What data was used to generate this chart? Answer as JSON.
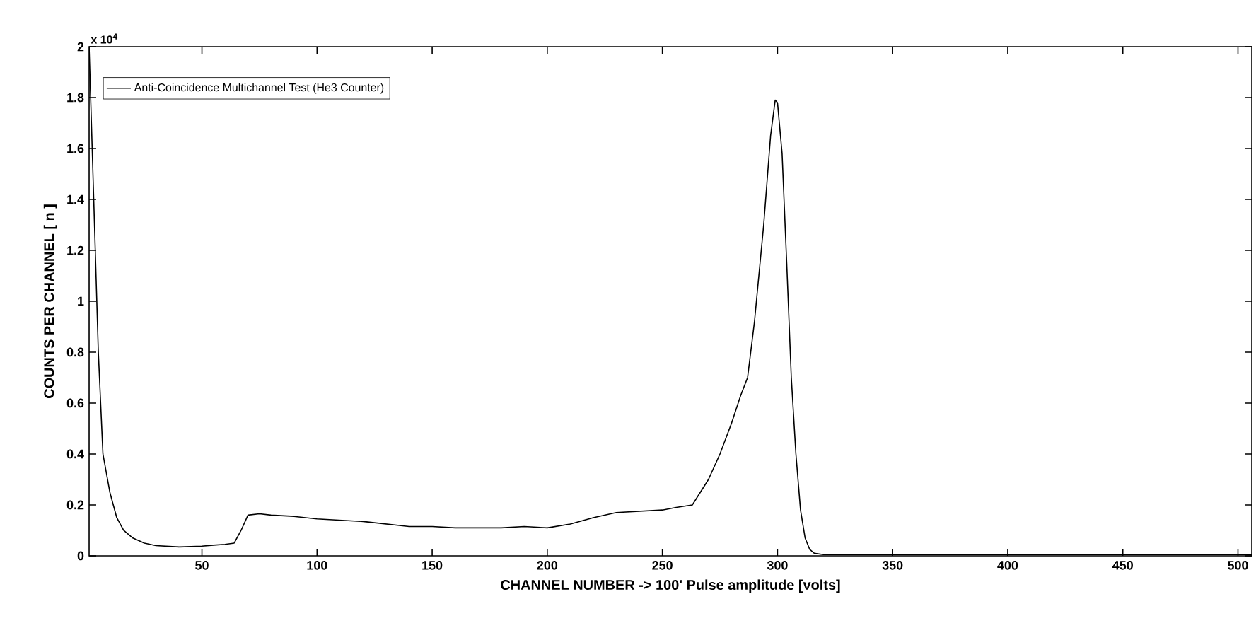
{
  "chart_data": {
    "type": "line",
    "xlabel": "CHANNEL NUMBER -> 100' Pulse amplitude [volts]",
    "ylabel": "COUNTS PER CHANNEL [ n ]",
    "annotations": [
      "x 10$^{4}$"
    ],
    "xlim": [
      1,
      506
    ],
    "ylim": [
      0,
      2
    ],
    "xticks": [
      50,
      100,
      150,
      200,
      250,
      300,
      350,
      400,
      450,
      500
    ],
    "yticks": [
      0,
      0.2,
      0.4,
      0.6,
      0.8,
      1,
      1.2,
      1.4,
      1.6,
      1.8,
      2
    ],
    "grid": false,
    "legend": "top left",
    "marker": "none",
    "line_style": "solid",
    "series": [
      {
        "name": "Anti-Coincidence Multichannel Test (He3 Counter)",
        "color": "#000000",
        "x": [
          1,
          3,
          5,
          7,
          10,
          13,
          16,
          20,
          25,
          30,
          40,
          50,
          55,
          60,
          64,
          67,
          70,
          75,
          80,
          90,
          100,
          110,
          120,
          130,
          140,
          150,
          160,
          170,
          180,
          190,
          200,
          210,
          220,
          230,
          240,
          250,
          256,
          263,
          270,
          275,
          280,
          284,
          287,
          290,
          294,
          297,
          299,
          300,
          302,
          304,
          306,
          308,
          310,
          312,
          314,
          316,
          320,
          350,
          400,
          450,
          500,
          506
        ],
        "values": [
          2,
          1.4,
          0.8,
          0.4,
          0.25,
          0.15,
          0.1,
          0.07,
          0.05,
          0.04,
          0.035,
          0.038,
          0.042,
          0.045,
          0.05,
          0.1,
          0.16,
          0.165,
          0.16,
          0.155,
          0.145,
          0.14,
          0.135,
          0.125,
          0.115,
          0.115,
          0.11,
          0.11,
          0.11,
          0.115,
          0.11,
          0.125,
          0.15,
          0.17,
          0.175,
          0.18,
          0.19,
          0.2,
          0.3,
          0.4,
          0.52,
          0.63,
          0.7,
          0.92,
          1.3,
          1.65,
          1.79,
          1.78,
          1.58,
          1.15,
          0.7,
          0.4,
          0.18,
          0.07,
          0.025,
          0.01,
          0.005,
          0.005,
          0.005,
          0.005,
          0.005,
          0.005
        ]
      }
    ]
  }
}
